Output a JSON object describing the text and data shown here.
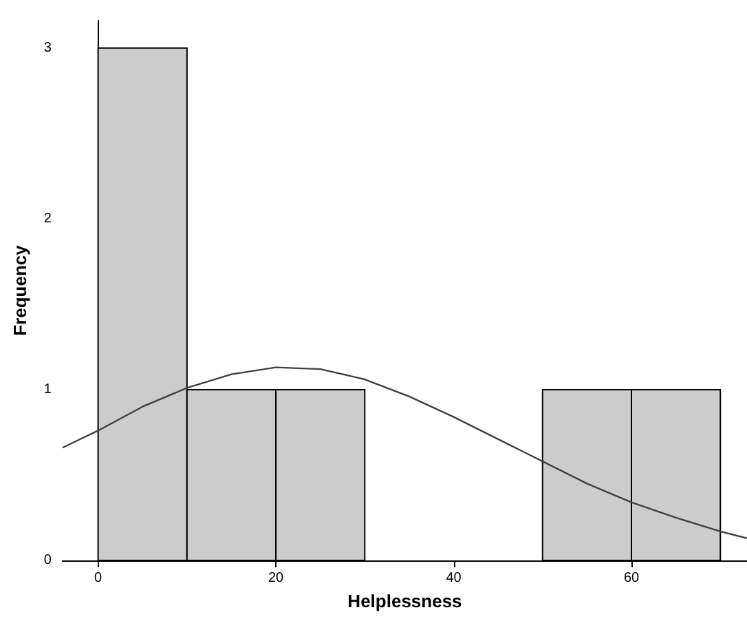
{
  "chart_data": {
    "type": "histogram",
    "xlabel": "Helplessness",
    "ylabel": "Frequency",
    "xlim": [
      -4,
      73
    ],
    "ylim": [
      0,
      3.16
    ],
    "xticks": [
      0,
      20,
      40,
      60
    ],
    "yticks": [
      0,
      1,
      2,
      3
    ],
    "marker": "none",
    "bins": [
      0,
      10,
      20,
      30,
      40,
      50,
      60,
      70
    ],
    "values": [
      3,
      1,
      1,
      0,
      0,
      1,
      1
    ],
    "color": "#cccccc",
    "series": [
      {
        "type": "line",
        "color": "#404040",
        "x": [
          -4,
          0,
          5,
          10,
          15,
          20,
          25,
          30,
          35,
          40,
          45,
          50,
          55,
          60,
          65,
          70,
          73
        ],
        "values": [
          0.66,
          0.76,
          0.9,
          1.01,
          1.09,
          1.13,
          1.12,
          1.06,
          0.96,
          0.84,
          0.71,
          0.58,
          0.45,
          0.34,
          0.25,
          0.17,
          0.13
        ]
      }
    ]
  }
}
